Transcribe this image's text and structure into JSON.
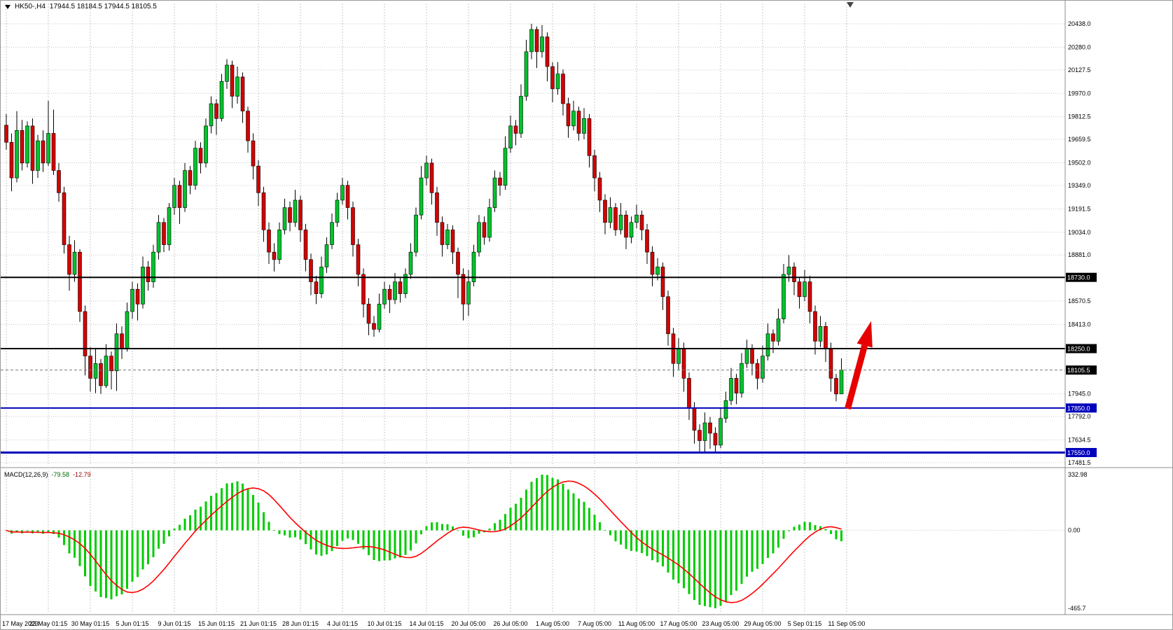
{
  "window": {
    "symbol_label": "HK50-,H4",
    "ohlc_readout": "17944.5 18184.5 17944.5 18105.5"
  },
  "chart_data": {
    "type": "candlestick",
    "symbol": "HK50-",
    "timeframe": "H4",
    "last_ohlc": {
      "open": 17944.5,
      "high": 18184.5,
      "low": 17944.5,
      "close": 18105.5
    },
    "price_range": {
      "top": 20438.0,
      "bottom": 17481.5
    },
    "price_axis_ticks": [
      "20438.0",
      "20280.0",
      "20127.5",
      "19970.0",
      "19812.5",
      "19659.5",
      "19502.0",
      "19349.0",
      "19191.5",
      "19034.0",
      "18881.0",
      "18570.5",
      "18413.0",
      "17945.0",
      "17792.0",
      "17634.5",
      "17481.5"
    ],
    "x_labels": [
      "17 May 2023",
      "23 May 01:15",
      "30 May 01:15",
      "5 Jun 01:15",
      "9 Jun 01:15",
      "15 Jun 01:15",
      "21 Jun 01:15",
      "28 Jun 01:15",
      "4 Jul 01:15",
      "10 Jul 01:15",
      "14 Jul 01:15",
      "20 Jul 05:00",
      "26 Jul 05:00",
      "1 Aug 05:00",
      "7 Aug 05:00",
      "11 Aug 05:00",
      "17 Aug 05:00",
      "23 Aug 05:00",
      "29 Aug 05:00",
      "5 Sep 01:15",
      "11 Sep 05:00"
    ],
    "levels": [
      {
        "name": "resistance-upper-line",
        "price": 18730.0,
        "label": "18730.0",
        "color": "#000000",
        "tag_color": "#000000",
        "style": "solid",
        "width": 2
      },
      {
        "name": "resistance-lower-line",
        "price": 18250.0,
        "label": "18250.0",
        "color": "#000000",
        "tag_color": "#000000",
        "style": "solid",
        "width": 2
      },
      {
        "name": "bid-price-line",
        "price": 18105.5,
        "label": "18105.5",
        "color": "#777777",
        "tag_color": "#000000",
        "style": "dashed",
        "width": 1
      },
      {
        "name": "support-upper-line",
        "price": 17850.0,
        "label": "17850.0",
        "color": "#0000bb",
        "tag_color": "#0000bb",
        "style": "solid",
        "width": 2
      },
      {
        "name": "support-lower-line",
        "price": 17550.0,
        "label": "17550.0",
        "color": "#0000bb",
        "tag_color": "#0000bb",
        "style": "solid",
        "width": 3
      }
    ],
    "candles": [
      [
        19755,
        19830,
        19590,
        19640
      ],
      [
        19640,
        19700,
        19310,
        19400
      ],
      [
        19400,
        19850,
        19370,
        19720
      ],
      [
        19720,
        19790,
        19450,
        19500
      ],
      [
        19500,
        19780,
        19470,
        19750
      ],
      [
        19750,
        19800,
        19360,
        19450
      ],
      [
        19450,
        19690,
        19400,
        19650
      ],
      [
        19650,
        19720,
        19440,
        19500
      ],
      [
        19500,
        19920,
        19480,
        19700
      ],
      [
        19700,
        19860,
        19420,
        19450
      ],
      [
        19450,
        19500,
        19240,
        19300
      ],
      [
        19300,
        19340,
        18890,
        18950
      ],
      [
        18950,
        19010,
        18640,
        18750
      ],
      [
        18750,
        18980,
        18700,
        18900
      ],
      [
        18900,
        18920,
        18430,
        18500
      ],
      [
        18500,
        18540,
        18070,
        18200
      ],
      [
        18200,
        18260,
        17960,
        18050
      ],
      [
        18050,
        18250,
        17950,
        18150
      ],
      [
        18150,
        18180,
        17945,
        18000
      ],
      [
        18000,
        18280,
        17985,
        18200
      ],
      [
        18200,
        18230,
        17975,
        18100
      ],
      [
        18100,
        18420,
        17965,
        18350
      ],
      [
        18350,
        18400,
        18180,
        18250
      ],
      [
        18250,
        18560,
        18230,
        18500
      ],
      [
        18500,
        18700,
        18450,
        18650
      ],
      [
        18650,
        18690,
        18440,
        18550
      ],
      [
        18550,
        18870,
        18520,
        18800
      ],
      [
        18800,
        18840,
        18640,
        18700
      ],
      [
        18700,
        18950,
        18660,
        18900
      ],
      [
        18900,
        19150,
        18850,
        19100
      ],
      [
        19100,
        19130,
        18900,
        18950
      ],
      [
        18950,
        19230,
        18910,
        19200
      ],
      [
        19200,
        19400,
        19150,
        19350
      ],
      [
        19350,
        19380,
        19090,
        19200
      ],
      [
        19200,
        19500,
        19170,
        19450
      ],
      [
        19450,
        19480,
        19290,
        19350
      ],
      [
        19350,
        19650,
        19320,
        19600
      ],
      [
        19600,
        19640,
        19430,
        19500
      ],
      [
        19500,
        19800,
        19470,
        19750
      ],
      [
        19750,
        19950,
        19700,
        19900
      ],
      [
        19900,
        19930,
        19690,
        19800
      ],
      [
        19800,
        20100,
        19780,
        20050
      ],
      [
        20050,
        20200,
        20000,
        20160
      ],
      [
        20160,
        20190,
        19870,
        19950
      ],
      [
        19950,
        20150,
        19900,
        20080
      ],
      [
        20080,
        20110,
        19770,
        19850
      ],
      [
        19850,
        19880,
        19570,
        19650
      ],
      [
        19650,
        19700,
        19390,
        19480
      ],
      [
        19480,
        19520,
        19210,
        19300
      ],
      [
        19300,
        19340,
        18970,
        19050
      ],
      [
        19050,
        19100,
        18820,
        18900
      ],
      [
        18900,
        18960,
        18770,
        18850
      ],
      [
        18850,
        19100,
        18820,
        19050
      ],
      [
        19050,
        19260,
        19020,
        19200
      ],
      [
        19200,
        19240,
        19040,
        19100
      ],
      [
        19100,
        19320,
        19070,
        19250
      ],
      [
        19250,
        19280,
        18970,
        19050
      ],
      [
        19050,
        19090,
        18770,
        18850
      ],
      [
        18850,
        18890,
        18610,
        18700
      ],
      [
        18700,
        18740,
        18550,
        18620
      ],
      [
        18620,
        18870,
        18590,
        18800
      ],
      [
        18800,
        19000,
        18760,
        18950
      ],
      [
        18950,
        19160,
        18920,
        19100
      ],
      [
        19100,
        19300,
        19070,
        19250
      ],
      [
        19250,
        19400,
        19220,
        19350
      ],
      [
        19350,
        19380,
        19120,
        19200
      ],
      [
        19200,
        19240,
        18870,
        18950
      ],
      [
        18950,
        18990,
        18670,
        18750
      ],
      [
        18750,
        18790,
        18460,
        18550
      ],
      [
        18550,
        18590,
        18340,
        18420
      ],
      [
        18420,
        18470,
        18330,
        18380
      ],
      [
        18380,
        18620,
        18360,
        18550
      ],
      [
        18550,
        18700,
        18520,
        18650
      ],
      [
        18650,
        18680,
        18490,
        18580
      ],
      [
        18580,
        18760,
        18550,
        18700
      ],
      [
        18700,
        18730,
        18560,
        18620
      ],
      [
        18620,
        18790,
        18590,
        18750
      ],
      [
        18750,
        18960,
        18720,
        18900
      ],
      [
        18900,
        19200,
        18870,
        19150
      ],
      [
        19150,
        19480,
        19120,
        19400
      ],
      [
        19400,
        19550,
        19350,
        19500
      ],
      [
        19500,
        19530,
        19220,
        19300
      ],
      [
        19300,
        19340,
        19010,
        19100
      ],
      [
        19100,
        19140,
        18870,
        18950
      ],
      [
        18950,
        19090,
        18920,
        19050
      ],
      [
        19050,
        19080,
        18820,
        18900
      ],
      [
        18900,
        18930,
        18590,
        18750
      ],
      [
        18750,
        18790,
        18440,
        18550
      ],
      [
        18550,
        18780,
        18470,
        18700
      ],
      [
        18700,
        18950,
        18670,
        18900
      ],
      [
        18900,
        19150,
        18870,
        19100
      ],
      [
        19100,
        19140,
        18950,
        19000
      ],
      [
        19000,
        19260,
        18970,
        19200
      ],
      [
        19200,
        19450,
        19170,
        19400
      ],
      [
        19400,
        19440,
        19280,
        19350
      ],
      [
        19350,
        19680,
        19320,
        19600
      ],
      [
        19600,
        19820,
        19570,
        19750
      ],
      [
        19750,
        19790,
        19620,
        19700
      ],
      [
        19700,
        20030,
        19670,
        19950
      ],
      [
        19950,
        20330,
        19920,
        20250
      ],
      [
        20250,
        20438,
        20200,
        20400
      ],
      [
        20400,
        20420,
        20140,
        20250
      ],
      [
        20250,
        20430,
        20210,
        20350
      ],
      [
        20350,
        20380,
        20050,
        20150
      ],
      [
        20150,
        20180,
        19910,
        20000
      ],
      [
        20000,
        20180,
        19960,
        20100
      ],
      [
        20100,
        20130,
        19820,
        19900
      ],
      [
        19900,
        19940,
        19670,
        19750
      ],
      [
        19750,
        19920,
        19720,
        19850
      ],
      [
        19850,
        19880,
        19650,
        19700
      ],
      [
        19700,
        19870,
        19660,
        19800
      ],
      [
        19800,
        19830,
        19470,
        19550
      ],
      [
        19550,
        19590,
        19310,
        19400
      ],
      [
        19400,
        19440,
        19170,
        19250
      ],
      [
        19250,
        19290,
        19020,
        19100
      ],
      [
        19100,
        19270,
        19060,
        19200
      ],
      [
        19200,
        19230,
        19010,
        19050
      ],
      [
        19050,
        19230,
        19020,
        19150
      ],
      [
        19150,
        19180,
        18920,
        19000
      ],
      [
        19000,
        19140,
        18960,
        19100
      ],
      [
        19100,
        19220,
        19060,
        19150
      ],
      [
        19150,
        19180,
        18980,
        19050
      ],
      [
        19050,
        19090,
        18820,
        18900
      ],
      [
        18900,
        18940,
        18670,
        18750
      ],
      [
        18750,
        18860,
        18710,
        18800
      ],
      [
        18800,
        18830,
        18510,
        18600
      ],
      [
        18600,
        18640,
        18270,
        18350
      ],
      [
        18350,
        18390,
        18060,
        18150
      ],
      [
        18150,
        18320,
        18110,
        18250
      ],
      [
        18250,
        18290,
        17960,
        18050
      ],
      [
        18050,
        18090,
        17770,
        17850
      ],
      [
        17850,
        17890,
        17610,
        17700
      ],
      [
        17700,
        17740,
        17555,
        17630
      ],
      [
        17630,
        17820,
        17550,
        17750
      ],
      [
        17750,
        17790,
        17575,
        17680
      ],
      [
        17680,
        17720,
        17550,
        17600
      ],
      [
        17600,
        17850,
        17580,
        17780
      ],
      [
        17780,
        17960,
        17750,
        17900
      ],
      [
        17900,
        18120,
        17870,
        18050
      ],
      [
        18050,
        18080,
        17875,
        17950
      ],
      [
        17950,
        18220,
        17920,
        18150
      ],
      [
        18150,
        18310,
        18120,
        18250
      ],
      [
        18250,
        18280,
        18070,
        18150
      ],
      [
        18150,
        18180,
        17975,
        18050
      ],
      [
        18050,
        18270,
        18020,
        18200
      ],
      [
        18200,
        18420,
        18170,
        18350
      ],
      [
        18350,
        18380,
        18220,
        18300
      ],
      [
        18300,
        18520,
        18270,
        18450
      ],
      [
        18450,
        18820,
        18420,
        18750
      ],
      [
        18750,
        18880,
        18700,
        18800
      ],
      [
        18800,
        18830,
        18610,
        18700
      ],
      [
        18700,
        18730,
        18520,
        18600
      ],
      [
        18600,
        18780,
        18570,
        18700
      ],
      [
        18700,
        18740,
        18420,
        18500
      ],
      [
        18500,
        18540,
        18210,
        18300
      ],
      [
        18300,
        18470,
        18260,
        18400
      ],
      [
        18400,
        18430,
        18160,
        18250
      ],
      [
        18250,
        18290,
        17960,
        18050
      ],
      [
        18050,
        18080,
        17895,
        17944.5
      ],
      [
        17944.5,
        18184.5,
        17944.5,
        18105.5
      ]
    ],
    "macd": {
      "label": "MACD(12,26,9)",
      "main_value": "-79.58",
      "signal_value": "-12.79",
      "params": [
        12,
        26,
        9
      ],
      "axis": {
        "max": 332.98,
        "zero": 0.0,
        "min": -465.7
      },
      "axis_labels": [
        "332.98",
        "0.00",
        "-465.7"
      ]
    },
    "annotation_arrow": {
      "type": "up-arrow",
      "color": "#e60000",
      "from_price": 17845,
      "to_price": 18435
    },
    "colors": {
      "bull": "#00c32c",
      "bear": "#d40000",
      "wick": "#000000",
      "grid": "#c9c9c9",
      "macd_hist": "#00cc00",
      "macd_signal": "#ff0000",
      "axis_text": "#000000"
    }
  }
}
